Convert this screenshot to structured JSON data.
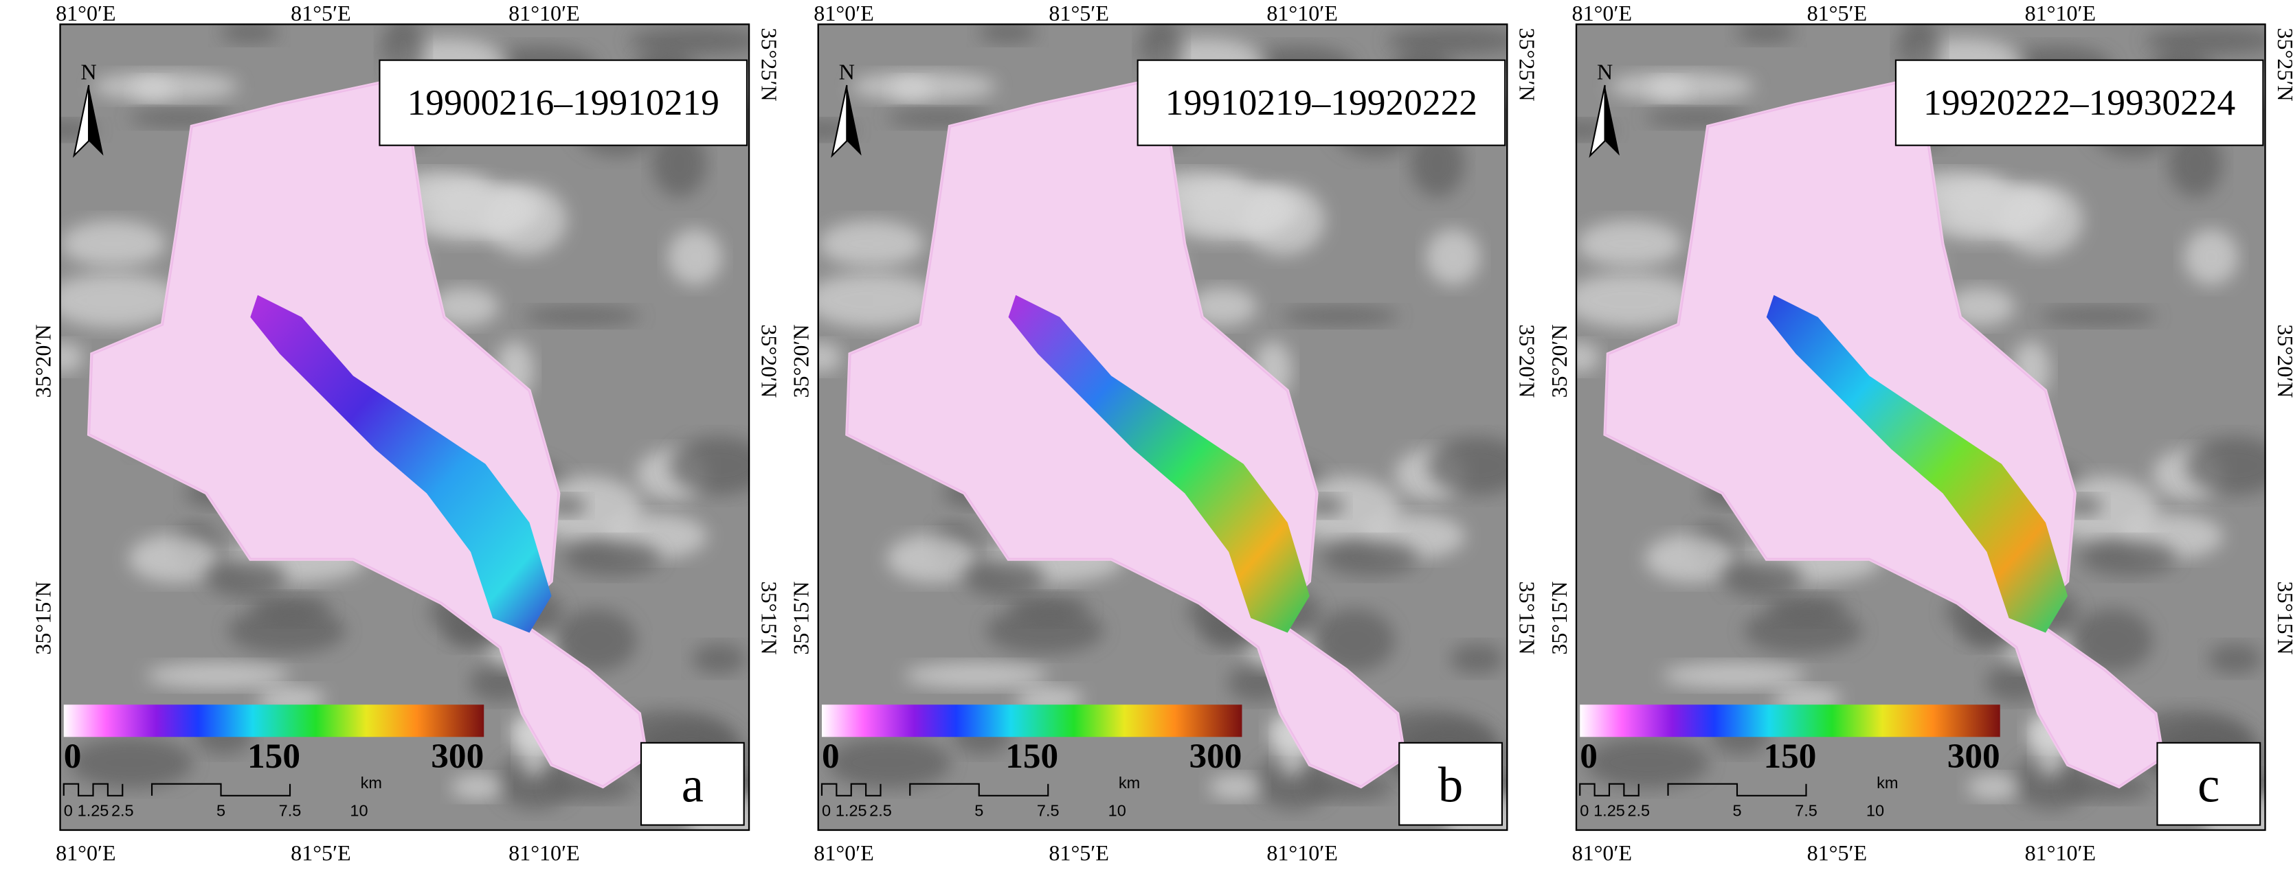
{
  "axes": {
    "top": [
      "81°0′E",
      "81°5′E",
      "81°10′E"
    ],
    "bottom": [
      "81°0′E",
      "81°5′E",
      "81°10′E"
    ],
    "left": [
      "35°20′N",
      "35°15′N"
    ],
    "right": [
      "35°25′N",
      "35°20′N",
      "35°15′N"
    ]
  },
  "north": "N",
  "colorbar": {
    "ticks": [
      0,
      150,
      300
    ]
  },
  "scale_bar": {
    "labels": [
      "0",
      "1.25",
      "2.5",
      "5",
      "7.5",
      "10"
    ],
    "unit": "km"
  },
  "panels": [
    {
      "period": "19900216–19910219",
      "letter": "a"
    },
    {
      "period": "19910219–19920222",
      "letter": "b"
    },
    {
      "period": "19920222–19930224",
      "letter": "c"
    }
  ]
}
